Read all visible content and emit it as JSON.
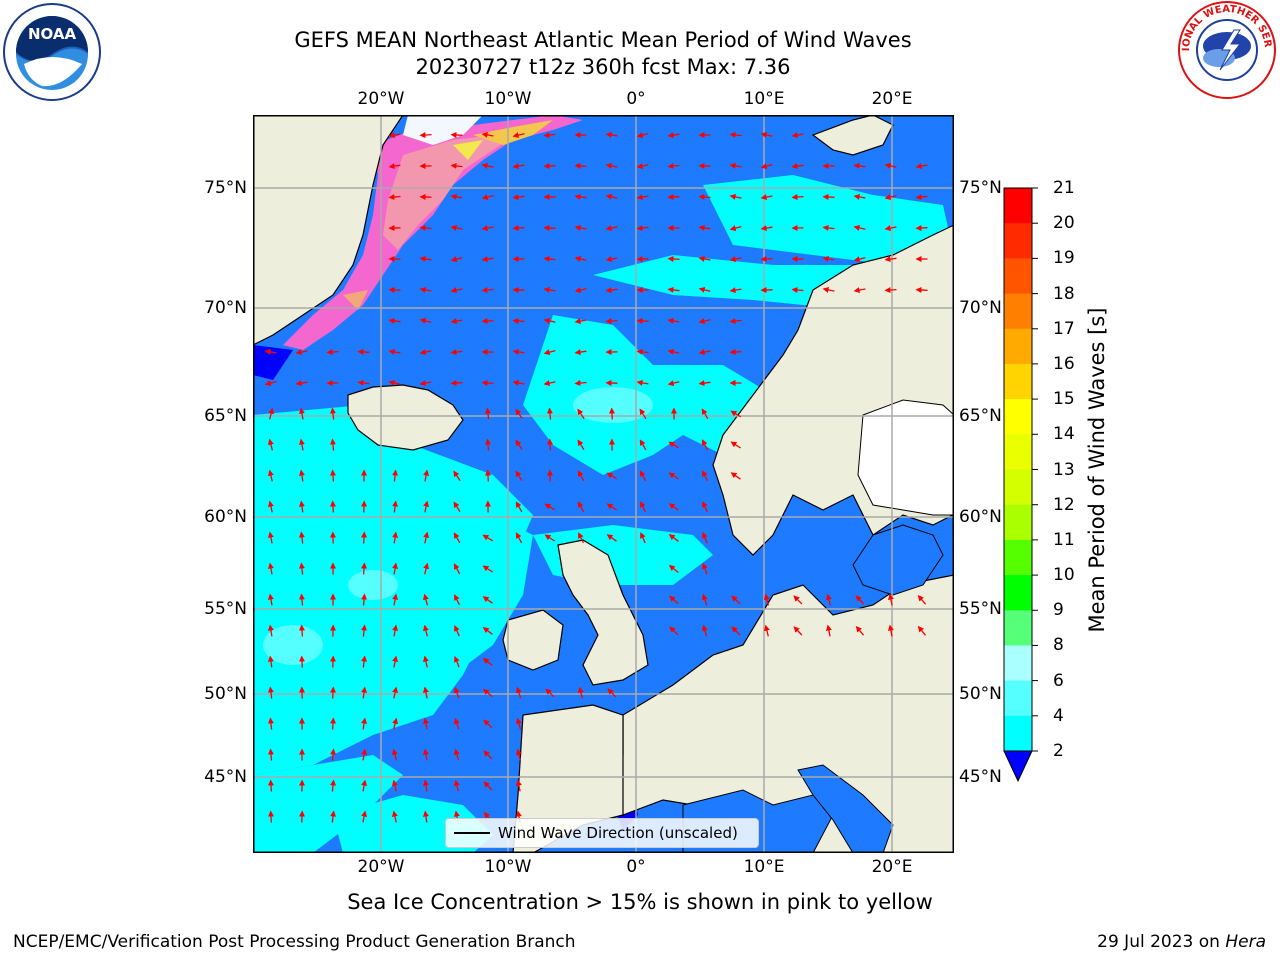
{
  "header": {
    "title_line1": "GEFS MEAN Northeast Atlantic Mean Period of Wind Waves",
    "title_line2": "20230727 t12z 360h fcst   Max: 7.36"
  },
  "logos": {
    "left": "NOAA",
    "right": "NATIONAL WEATHER SERVICE"
  },
  "map": {
    "top_ticks": [
      "20°W",
      "10°W",
      "0°",
      "10°E",
      "20°E"
    ],
    "bottom_ticks": [
      "20°W",
      "10°W",
      "0°",
      "10°E",
      "20°E"
    ],
    "left_ticks": [
      "75°N",
      "70°N",
      "65°N",
      "60°N",
      "55°N",
      "50°N",
      "45°N"
    ],
    "right_ticks": [
      "75°N",
      "70°N",
      "65°N",
      "60°N",
      "55°N",
      "50°N",
      "45°N"
    ],
    "legend_label": "Wind Wave Direction (unscaled)",
    "arrow_color": "#ff0000",
    "ocean_colors": {
      "low": "#0000ff",
      "deep": "#1e7bff",
      "mid": "#00ffff",
      "light": "#55ffff"
    },
    "land_color": "#eeeedd"
  },
  "colorbar": {
    "title": "Mean Period of Wind Waves [s]",
    "labels": [
      "21",
      "20",
      "19",
      "18",
      "17",
      "16",
      "15",
      "14",
      "13",
      "12",
      "11",
      "10",
      "9",
      "8",
      "6",
      "4",
      "2"
    ],
    "colors": [
      "#ff0000",
      "#ff2a00",
      "#ff5500",
      "#ff8000",
      "#ffaa00",
      "#ffd400",
      "#ffff00",
      "#eaff00",
      "#d4ff00",
      "#aaff00",
      "#55ff00",
      "#00ff00",
      "#55ff77",
      "#aaffff",
      "#55ffff",
      "#00ffff",
      "#1e7bff"
    ],
    "extend_color": "#0000ff"
  },
  "footer": {
    "sea_ice_note": "Sea Ice Concentration > 15% is shown in pink to yellow",
    "left": "NCEP/EMC/Verification Post Processing Product Generation Branch",
    "right_date": "29 Jul 2023 on ",
    "right_machine": "Hera"
  }
}
